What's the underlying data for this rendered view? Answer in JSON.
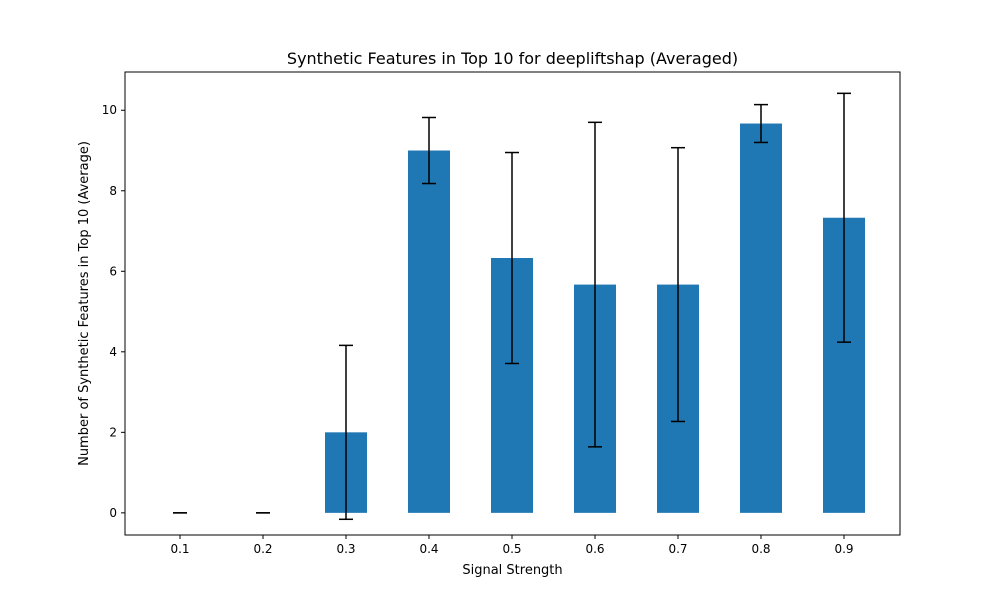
{
  "chart_data": {
    "type": "bar",
    "title": "Synthetic Features in Top 10 for deepliftshap  (Averaged)",
    "xlabel": "Signal Strength",
    "ylabel": "Number of Synthetic Features in Top 10 (Average)",
    "categories": [
      "0.1",
      "0.2",
      "0.3",
      "0.4",
      "0.5",
      "0.6",
      "0.7",
      "0.8",
      "0.9"
    ],
    "values": [
      0,
      0,
      2.0,
      9.0,
      6.33,
      5.67,
      5.67,
      9.67,
      7.33
    ],
    "error": [
      0,
      0,
      2.16,
      0.82,
      2.62,
      4.03,
      3.4,
      0.47,
      3.09
    ],
    "ylim": [
      -0.55,
      10.95
    ],
    "yticks": [
      0,
      2,
      4,
      6,
      8,
      10
    ],
    "bar_color": "#1f77b4",
    "error_color": "#000000",
    "grid": false,
    "legend": "none"
  }
}
